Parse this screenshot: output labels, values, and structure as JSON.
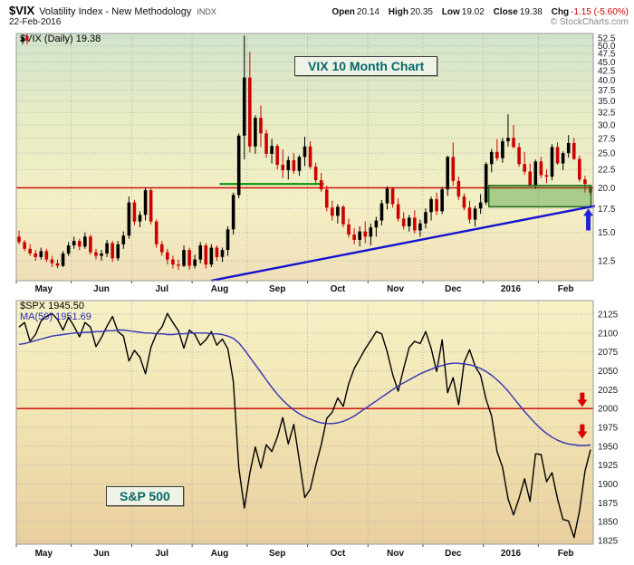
{
  "header": {
    "symbol": "$VIX",
    "description": "Volatility Index - New Methodology",
    "exchange": "INDX",
    "date": "22-Feb-2016",
    "copyright": "© StockCharts.com",
    "quote": {
      "open_label": "Open",
      "open_value": "20.14",
      "high_label": "High",
      "high_value": "20.35",
      "low_label": "Low",
      "low_value": "19.02",
      "close_label": "Close",
      "close_value": "19.38",
      "chg_label": "Chg",
      "chg_value": "-1.15 (-5.60%)"
    }
  },
  "chart_data": [
    {
      "type": "candlestick",
      "title": "VIX 10 Month Chart",
      "legend_label": "$VIX (Daily) 19.38",
      "symbol": "$VIX",
      "timeframe": "Daily",
      "last_close": 19.38,
      "y_scale": "log",
      "y_ticks": [
        12.5,
        15.0,
        17.5,
        20.0,
        22.5,
        25.0,
        27.5,
        30.0,
        32.5,
        35.0,
        37.5,
        40.0,
        42.5,
        45.0,
        47.5,
        50.0,
        52.5
      ],
      "y_tick_decimals": 1,
      "x_count": 105,
      "x_labels": [
        {
          "label": "May",
          "index": 0
        },
        {
          "label": "Jun",
          "index": 10
        },
        {
          "label": "Jul",
          "index": 21
        },
        {
          "label": "Aug",
          "index": 32
        },
        {
          "label": "Sep",
          "index": 42
        },
        {
          "label": "Oct",
          "index": 53
        },
        {
          "label": "Nov",
          "index": 64
        },
        {
          "label": "Dec",
          "index": 74
        },
        {
          "label": "2016",
          "index": 85
        },
        {
          "label": "Feb",
          "index": 95
        }
      ],
      "up_color": "#000000",
      "down_color": "#cc0000",
      "bg_gradient": [
        {
          "offset": "0%",
          "color": "#d2e4cc"
        },
        {
          "offset": "35%",
          "color": "#e7ecc4"
        },
        {
          "offset": "70%",
          "color": "#f4efc4"
        },
        {
          "offset": "100%",
          "color": "#efdfb8"
        }
      ],
      "candles": [
        [
          14.6,
          15.2,
          13.9,
          14.1
        ],
        [
          14.1,
          14.3,
          13.3,
          13.5
        ],
        [
          13.5,
          13.9,
          12.9,
          13.1
        ],
        [
          13.1,
          13.4,
          12.5,
          12.8
        ],
        [
          12.8,
          13.6,
          12.6,
          13.3
        ],
        [
          13.3,
          13.5,
          12.4,
          12.6
        ],
        [
          12.6,
          12.9,
          12.0,
          12.3
        ],
        [
          12.3,
          12.6,
          11.9,
          12.1
        ],
        [
          12.1,
          13.3,
          12.0,
          13.1
        ],
        [
          13.1,
          14.1,
          12.9,
          13.8
        ],
        [
          13.8,
          14.6,
          13.5,
          14.2
        ],
        [
          14.2,
          14.4,
          13.4,
          13.7
        ],
        [
          13.7,
          15.0,
          13.5,
          14.6
        ],
        [
          14.6,
          14.8,
          13.0,
          13.2
        ],
        [
          13.2,
          13.5,
          12.6,
          12.9
        ],
        [
          12.9,
          13.4,
          12.5,
          13.1
        ],
        [
          13.1,
          14.3,
          12.8,
          14.0
        ],
        [
          14.0,
          14.2,
          12.4,
          12.7
        ],
        [
          12.7,
          14.2,
          12.5,
          13.9
        ],
        [
          13.9,
          15.1,
          13.5,
          14.7
        ],
        [
          14.7,
          18.9,
          14.4,
          18.2
        ],
        [
          18.2,
          18.5,
          15.7,
          16.1
        ],
        [
          16.1,
          17.2,
          15.5,
          16.8
        ],
        [
          16.8,
          20.0,
          16.2,
          19.7
        ],
        [
          19.7,
          19.9,
          15.8,
          16.1
        ],
        [
          16.1,
          16.3,
          13.6,
          13.9
        ],
        [
          13.9,
          14.2,
          12.9,
          13.2
        ],
        [
          13.2,
          13.5,
          12.2,
          12.6
        ],
        [
          12.6,
          12.9,
          11.9,
          12.2
        ],
        [
          12.2,
          12.6,
          11.8,
          12.1
        ],
        [
          12.1,
          13.8,
          12.0,
          13.4
        ],
        [
          13.4,
          13.6,
          11.8,
          12.1
        ],
        [
          12.1,
          13.0,
          11.9,
          12.6
        ],
        [
          12.6,
          14.1,
          12.3,
          13.8
        ],
        [
          13.8,
          14.0,
          11.9,
          12.2
        ],
        [
          12.2,
          13.9,
          12.0,
          13.6
        ],
        [
          13.6,
          13.8,
          12.5,
          12.8
        ],
        [
          12.8,
          13.6,
          12.4,
          13.4
        ],
        [
          13.4,
          15.6,
          12.9,
          15.3
        ],
        [
          15.3,
          19.4,
          14.8,
          19.1
        ],
        [
          19.1,
          28.4,
          18.7,
          28.0
        ],
        [
          28.0,
          53.3,
          24.0,
          40.7
        ],
        [
          40.7,
          48.0,
          25.1,
          26.1
        ],
        [
          26.1,
          31.9,
          24.9,
          31.4
        ],
        [
          31.4,
          34.0,
          26.0,
          28.4
        ],
        [
          28.4,
          29.1,
          24.3,
          24.9
        ],
        [
          24.9,
          27.4,
          23.4,
          26.2
        ],
        [
          26.2,
          26.5,
          22.5,
          23.2
        ],
        [
          23.2,
          25.6,
          21.3,
          22.4
        ],
        [
          22.4,
          24.5,
          21.1,
          23.9
        ],
        [
          23.9,
          25.0,
          21.9,
          22.3
        ],
        [
          22.3,
          24.7,
          21.6,
          24.4
        ],
        [
          24.4,
          27.8,
          23.0,
          26.1
        ],
        [
          26.1,
          27.0,
          22.6,
          22.9
        ],
        [
          22.9,
          23.5,
          20.6,
          21.0
        ],
        [
          21.0,
          22.0,
          19.5,
          19.8
        ],
        [
          19.8,
          20.3,
          17.2,
          17.6
        ],
        [
          17.6,
          18.4,
          16.2,
          16.7
        ],
        [
          16.7,
          18.0,
          15.9,
          17.7
        ],
        [
          17.7,
          17.9,
          15.5,
          15.8
        ],
        [
          15.8,
          16.4,
          14.5,
          14.8
        ],
        [
          14.8,
          15.4,
          13.9,
          14.3
        ],
        [
          14.3,
          15.6,
          13.7,
          15.1
        ],
        [
          15.1,
          16.1,
          14.0,
          14.6
        ],
        [
          14.6,
          15.9,
          13.8,
          15.5
        ],
        [
          15.5,
          16.6,
          14.6,
          16.2
        ],
        [
          16.2,
          18.5,
          15.7,
          18.1
        ],
        [
          18.1,
          20.2,
          17.4,
          19.9
        ],
        [
          19.9,
          20.1,
          17.6,
          18.0
        ],
        [
          18.0,
          18.7,
          16.1,
          16.4
        ],
        [
          16.4,
          17.1,
          15.3,
          15.6
        ],
        [
          15.6,
          16.8,
          15.1,
          16.5
        ],
        [
          16.5,
          17.3,
          14.9,
          15.2
        ],
        [
          15.2,
          16.3,
          14.6,
          15.9
        ],
        [
          15.9,
          17.5,
          15.4,
          17.1
        ],
        [
          17.1,
          18.9,
          16.2,
          18.6
        ],
        [
          18.6,
          19.4,
          16.8,
          17.2
        ],
        [
          17.2,
          20.1,
          16.9,
          19.8
        ],
        [
          19.8,
          24.6,
          19.0,
          24.4
        ],
        [
          24.4,
          26.8,
          20.3,
          20.9
        ],
        [
          20.9,
          21.5,
          18.5,
          18.9
        ],
        [
          18.9,
          19.3,
          17.3,
          17.6
        ],
        [
          17.6,
          18.4,
          15.9,
          16.3
        ],
        [
          16.3,
          17.8,
          15.6,
          17.5
        ],
        [
          17.5,
          19.2,
          16.9,
          18.2
        ],
        [
          18.2,
          23.6,
          17.9,
          23.3
        ],
        [
          23.3,
          25.7,
          22.1,
          25.2
        ],
        [
          25.2,
          27.4,
          23.8,
          24.2
        ],
        [
          24.2,
          27.6,
          23.5,
          27.0
        ],
        [
          27.0,
          32.1,
          26.1,
          27.6
        ],
        [
          27.6,
          30.0,
          25.8,
          26.0
        ],
        [
          26.0,
          26.7,
          22.9,
          23.3
        ],
        [
          23.3,
          25.2,
          21.8,
          22.2
        ],
        [
          22.2,
          23.4,
          20.1,
          20.3
        ],
        [
          20.3,
          24.0,
          19.9,
          23.7
        ],
        [
          23.7,
          24.4,
          21.3,
          21.7
        ],
        [
          21.7,
          22.5,
          20.6,
          21.5
        ],
        [
          21.5,
          26.5,
          21.0,
          26.0
        ],
        [
          26.0,
          26.8,
          23.2,
          23.4
        ],
        [
          23.4,
          25.3,
          22.4,
          25.0
        ],
        [
          25.0,
          28.1,
          24.3,
          26.7
        ],
        [
          26.7,
          27.6,
          23.9,
          24.1
        ],
        [
          24.1,
          24.6,
          20.8,
          21.1
        ],
        [
          21.1,
          21.6,
          19.4,
          20.5
        ],
        [
          20.14,
          20.35,
          19.02,
          19.38
        ]
      ],
      "annotations": {
        "resistance_line": {
          "value": 20.0,
          "color": "#cc0000"
        },
        "support_segment": {
          "value": 20.5,
          "from_index": 37,
          "to_index": 56,
          "color": "#089408"
        },
        "zone_box": {
          "from_index": 86,
          "to_index": 104.6,
          "top": 20.3,
          "bottom": 17.7,
          "fill": "rgba(20,130,20,0.32)",
          "border": "#1c6b1c"
        },
        "trendline": {
          "from": {
            "index": 35,
            "value": 11.0
          },
          "to": {
            "index": 104.8,
            "value": 17.8
          },
          "color": "#1414cc"
        },
        "up_arrow": {
          "index": 103.6,
          "tip_value": 17.5,
          "base_value": 15.2,
          "color": "#2222dd"
        }
      }
    },
    {
      "type": "line",
      "title": "S&P 500",
      "legend_spx": "$SPX 1945.50",
      "legend_ma": "MA(50) 1951.69",
      "last_close": 1945.5,
      "ma_last": 1951.69,
      "y_scale": "linear",
      "y_ticks": [
        1825,
        1850,
        1875,
        1900,
        1925,
        1950,
        1975,
        2000,
        2025,
        2050,
        2075,
        2100,
        2125
      ],
      "y_tick_decimals": 0,
      "x_count": 105,
      "x_labels": [
        {
          "label": "May",
          "index": 0
        },
        {
          "label": "Jun",
          "index": 10
        },
        {
          "label": "Jul",
          "index": 21
        },
        {
          "label": "Aug",
          "index": 32
        },
        {
          "label": "Sep",
          "index": 42
        },
        {
          "label": "Oct",
          "index": 53
        },
        {
          "label": "Nov",
          "index": 64
        },
        {
          "label": "Dec",
          "index": 74
        },
        {
          "label": "2016",
          "index": 85
        },
        {
          "label": "Feb",
          "index": 95
        }
      ],
      "bg_gradient": [
        {
          "offset": "0%",
          "color": "#f6f1c6"
        },
        {
          "offset": "50%",
          "color": "#f1e3b2"
        },
        {
          "offset": "100%",
          "color": "#e9cf9e"
        }
      ],
      "series": [
        {
          "name": "$SPX",
          "color": "#000000",
          "width": 1.4,
          "values": [
            2108,
            2114,
            2089,
            2098,
            2116,
            2122,
            2126,
            2118,
            2104,
            2121,
            2109,
            2095,
            2114,
            2108,
            2082,
            2094,
            2109,
            2122,
            2102,
            2096,
            2063,
            2077,
            2068,
            2046,
            2081,
            2099,
            2108,
            2126,
            2114,
            2103,
            2080,
            2104,
            2098,
            2084,
            2091,
            2102,
            2084,
            2092,
            2079,
            2036,
            1921,
            1868,
            1914,
            1949,
            1921,
            1952,
            1943,
            1962,
            1988,
            1953,
            1979,
            1932,
            1882,
            1893,
            1924,
            1952,
            1987,
            1995,
            2014,
            2003,
            2033,
            2053,
            2066,
            2079,
            2090,
            2102,
            2099,
            2075,
            2045,
            2023,
            2053,
            2081,
            2089,
            2086,
            2102,
            2080,
            2049,
            2091,
            2021,
            2041,
            2005,
            2061,
            2078,
            2056,
            2044,
            2012,
            1990,
            1943,
            1922,
            1880,
            1859,
            1881,
            1907,
            1877,
            1940,
            1939,
            1903,
            1915,
            1880,
            1853,
            1851,
            1829,
            1864,
            1917,
            1945.5
          ]
        },
        {
          "name": "MA(50)",
          "color": "#3333b4",
          "width": 1.4,
          "values": [
            2085,
            2086,
            2088,
            2090,
            2092,
            2094,
            2096,
            2097,
            2098,
            2099,
            2100,
            2100,
            2101,
            2101,
            2102,
            2102,
            2103,
            2103,
            2104,
            2104,
            2103,
            2102,
            2101,
            2100,
            2100,
            2099,
            2099,
            2098,
            2098,
            2099,
            2099,
            2100,
            2100,
            2100,
            2100,
            2099,
            2099,
            2098,
            2096,
            2093,
            2087,
            2078,
            2068,
            2058,
            2048,
            2038,
            2028,
            2019,
            2011,
            2004,
            1998,
            1993,
            1989,
            1986,
            1983,
            1981,
            1980,
            1980,
            1981,
            1983,
            1986,
            1990,
            1995,
            2000,
            2005,
            2010,
            2015,
            2020,
            2025,
            2030,
            2034,
            2038,
            2042,
            2046,
            2049,
            2052,
            2055,
            2057,
            2059,
            2060,
            2060,
            2059,
            2058,
            2056,
            2053,
            2049,
            2044,
            2038,
            2031,
            2023,
            2014,
            2005,
            1996,
            1988,
            1980,
            1973,
            1967,
            1962,
            1958,
            1955,
            1953,
            1952,
            1951,
            1951,
            1951.7
          ]
        }
      ],
      "annotations": {
        "level_line": {
          "value": 2000,
          "color": "#cc0000"
        },
        "arrow_color": "#dd0000",
        "down_arrows": [
          {
            "index": 102.5,
            "tip_value": 2002,
            "base_value": 2021
          },
          {
            "index": 102.5,
            "tip_value": 1960,
            "base_value": 1979
          }
        ]
      }
    }
  ]
}
